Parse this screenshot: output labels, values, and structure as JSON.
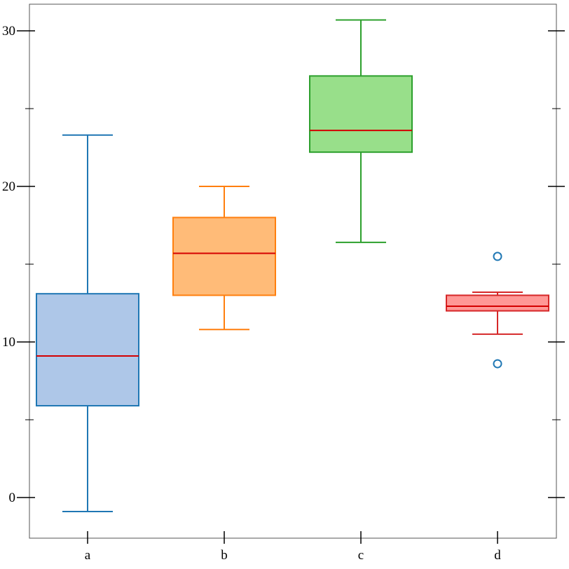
{
  "chart_data": {
    "type": "box",
    "title": "",
    "xlabel": "",
    "ylabel": "",
    "categories": [
      "a",
      "b",
      "c",
      "d"
    ],
    "ylim": [
      -2.6,
      31.7
    ],
    "yticks_major": [
      0,
      10,
      20,
      30
    ],
    "yticks_minor": [
      5,
      15,
      25
    ],
    "grid": false,
    "series": [
      {
        "category": "a",
        "whisker_low": -0.9,
        "q1": 5.9,
        "median": 9.1,
        "q3": 13.1,
        "whisker_high": 23.3,
        "outliers": [],
        "color": "#1f77b4",
        "fill": "#aec7e8"
      },
      {
        "category": "b",
        "whisker_low": 10.8,
        "q1": 13.0,
        "median": 15.7,
        "q3": 18.0,
        "whisker_high": 20.0,
        "outliers": [],
        "color": "#ff7f0e",
        "fill": "#ffbb78"
      },
      {
        "category": "c",
        "whisker_low": 16.4,
        "q1": 22.2,
        "median": 23.6,
        "q3": 27.1,
        "whisker_high": 30.7,
        "outliers": [],
        "color": "#2ca02c",
        "fill": "#98df8a"
      },
      {
        "category": "d",
        "whisker_low": 10.5,
        "q1": 12.0,
        "median": 12.3,
        "q3": 13.0,
        "whisker_high": 13.2,
        "outliers": [
          15.5,
          8.6
        ],
        "color": "#d62728",
        "fill": "#ff9896",
        "outlier_color": "#1f77b4"
      }
    ],
    "median_color": "#d40000"
  }
}
